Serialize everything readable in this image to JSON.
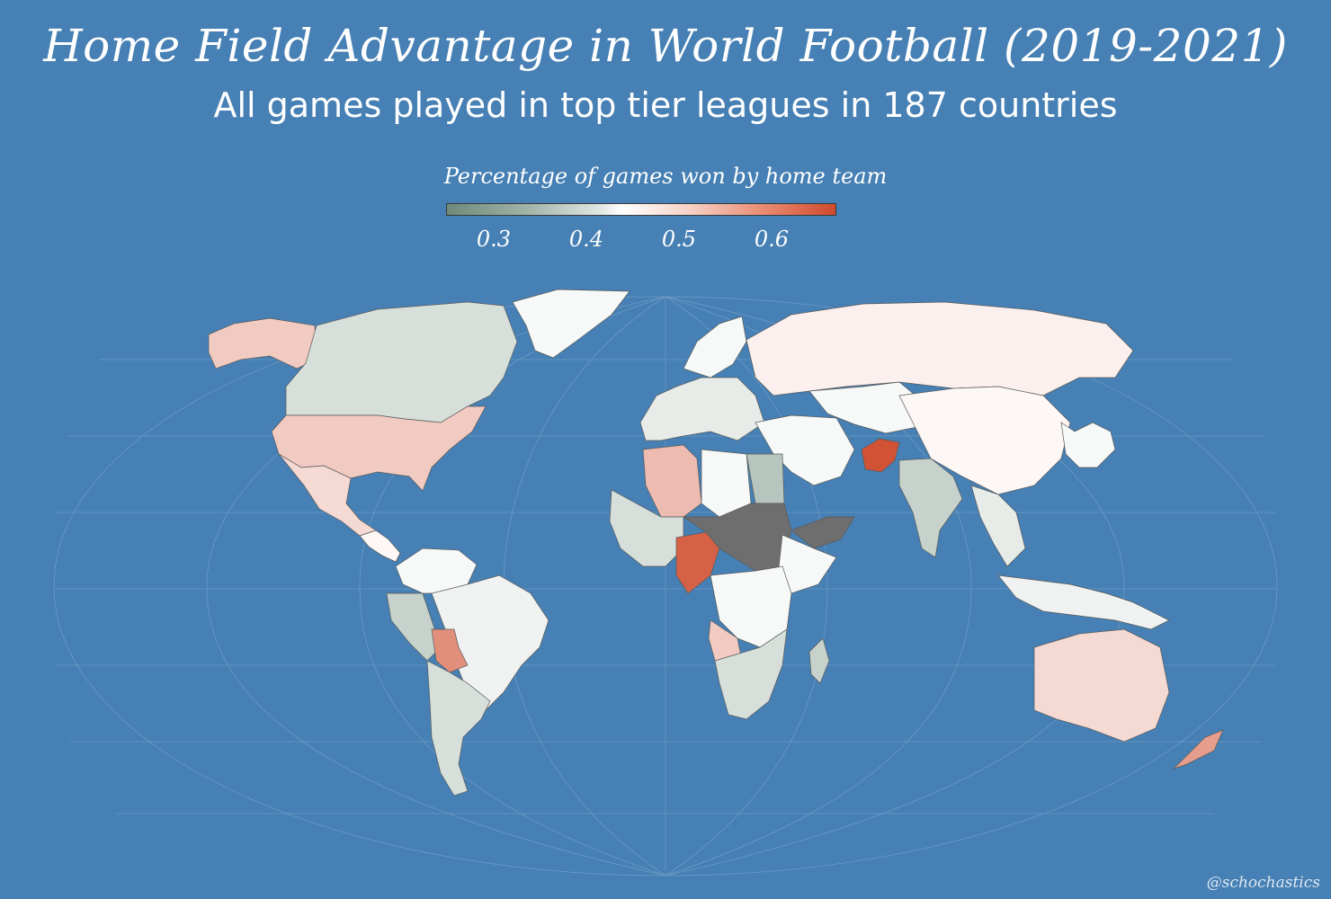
{
  "title": "Home Field Advantage in World Football (2019-2021)",
  "subtitle": "All games played in top tier leagues in 187 countries",
  "legend": {
    "title": "Percentage of games won by home team",
    "ticks": [
      "0.3",
      "0.4",
      "0.5",
      "0.6"
    ],
    "colors": {
      "low": "#6d8a7a",
      "mid": "#ffffff",
      "high": "#cf4a2c",
      "no_data": "#6e6e6e"
    }
  },
  "credit": "@schochastics",
  "map": {
    "projection": "robinson",
    "ocean_color": "#4680b4",
    "graticule": true,
    "regions": [
      {
        "id": "alaska",
        "value": 0.5
      },
      {
        "id": "canada",
        "value": 0.38
      },
      {
        "id": "usa",
        "value": 0.5
      },
      {
        "id": "mexico",
        "value": 0.48
      },
      {
        "id": "central-america",
        "value": 0.44
      },
      {
        "id": "greenland",
        "value": 0.42
      },
      {
        "id": "colombia-venezuela",
        "value": 0.42
      },
      {
        "id": "peru",
        "value": 0.36
      },
      {
        "id": "brazil",
        "value": 0.41
      },
      {
        "id": "bolivia",
        "value": 0.58
      },
      {
        "id": "argentina-chile",
        "value": 0.38
      },
      {
        "id": "western-europe",
        "value": 0.4
      },
      {
        "id": "scandinavia",
        "value": 0.42
      },
      {
        "id": "russia",
        "value": 0.45
      },
      {
        "id": "middle-east",
        "value": 0.42
      },
      {
        "id": "afghanistan",
        "value": 0.66
      },
      {
        "id": "central-asia",
        "value": 0.42
      },
      {
        "id": "china",
        "value": 0.44
      },
      {
        "id": "india",
        "value": 0.36
      },
      {
        "id": "southeast-asia",
        "value": 0.4
      },
      {
        "id": "north-africa-algeria",
        "value": 0.52
      },
      {
        "id": "north-africa-libya",
        "value": 0.42
      },
      {
        "id": "egypt",
        "value": 0.34
      },
      {
        "id": "west-africa",
        "value": 0.38
      },
      {
        "id": "nigeria",
        "value": 0.64
      },
      {
        "id": "sahel",
        "value": null
      },
      {
        "id": "ethiopia",
        "value": 0.42
      },
      {
        "id": "central-africa",
        "value": 0.42
      },
      {
        "id": "angola",
        "value": 0.5
      },
      {
        "id": "southern-africa",
        "value": 0.38
      },
      {
        "id": "madagascar",
        "value": 0.36
      },
      {
        "id": "australia",
        "value": 0.48
      },
      {
        "id": "new-zealand",
        "value": 0.56
      },
      {
        "id": "indonesia",
        "value": 0.41
      },
      {
        "id": "japan-korea",
        "value": 0.42
      },
      {
        "id": "arabia-yemen",
        "value": null
      }
    ]
  }
}
